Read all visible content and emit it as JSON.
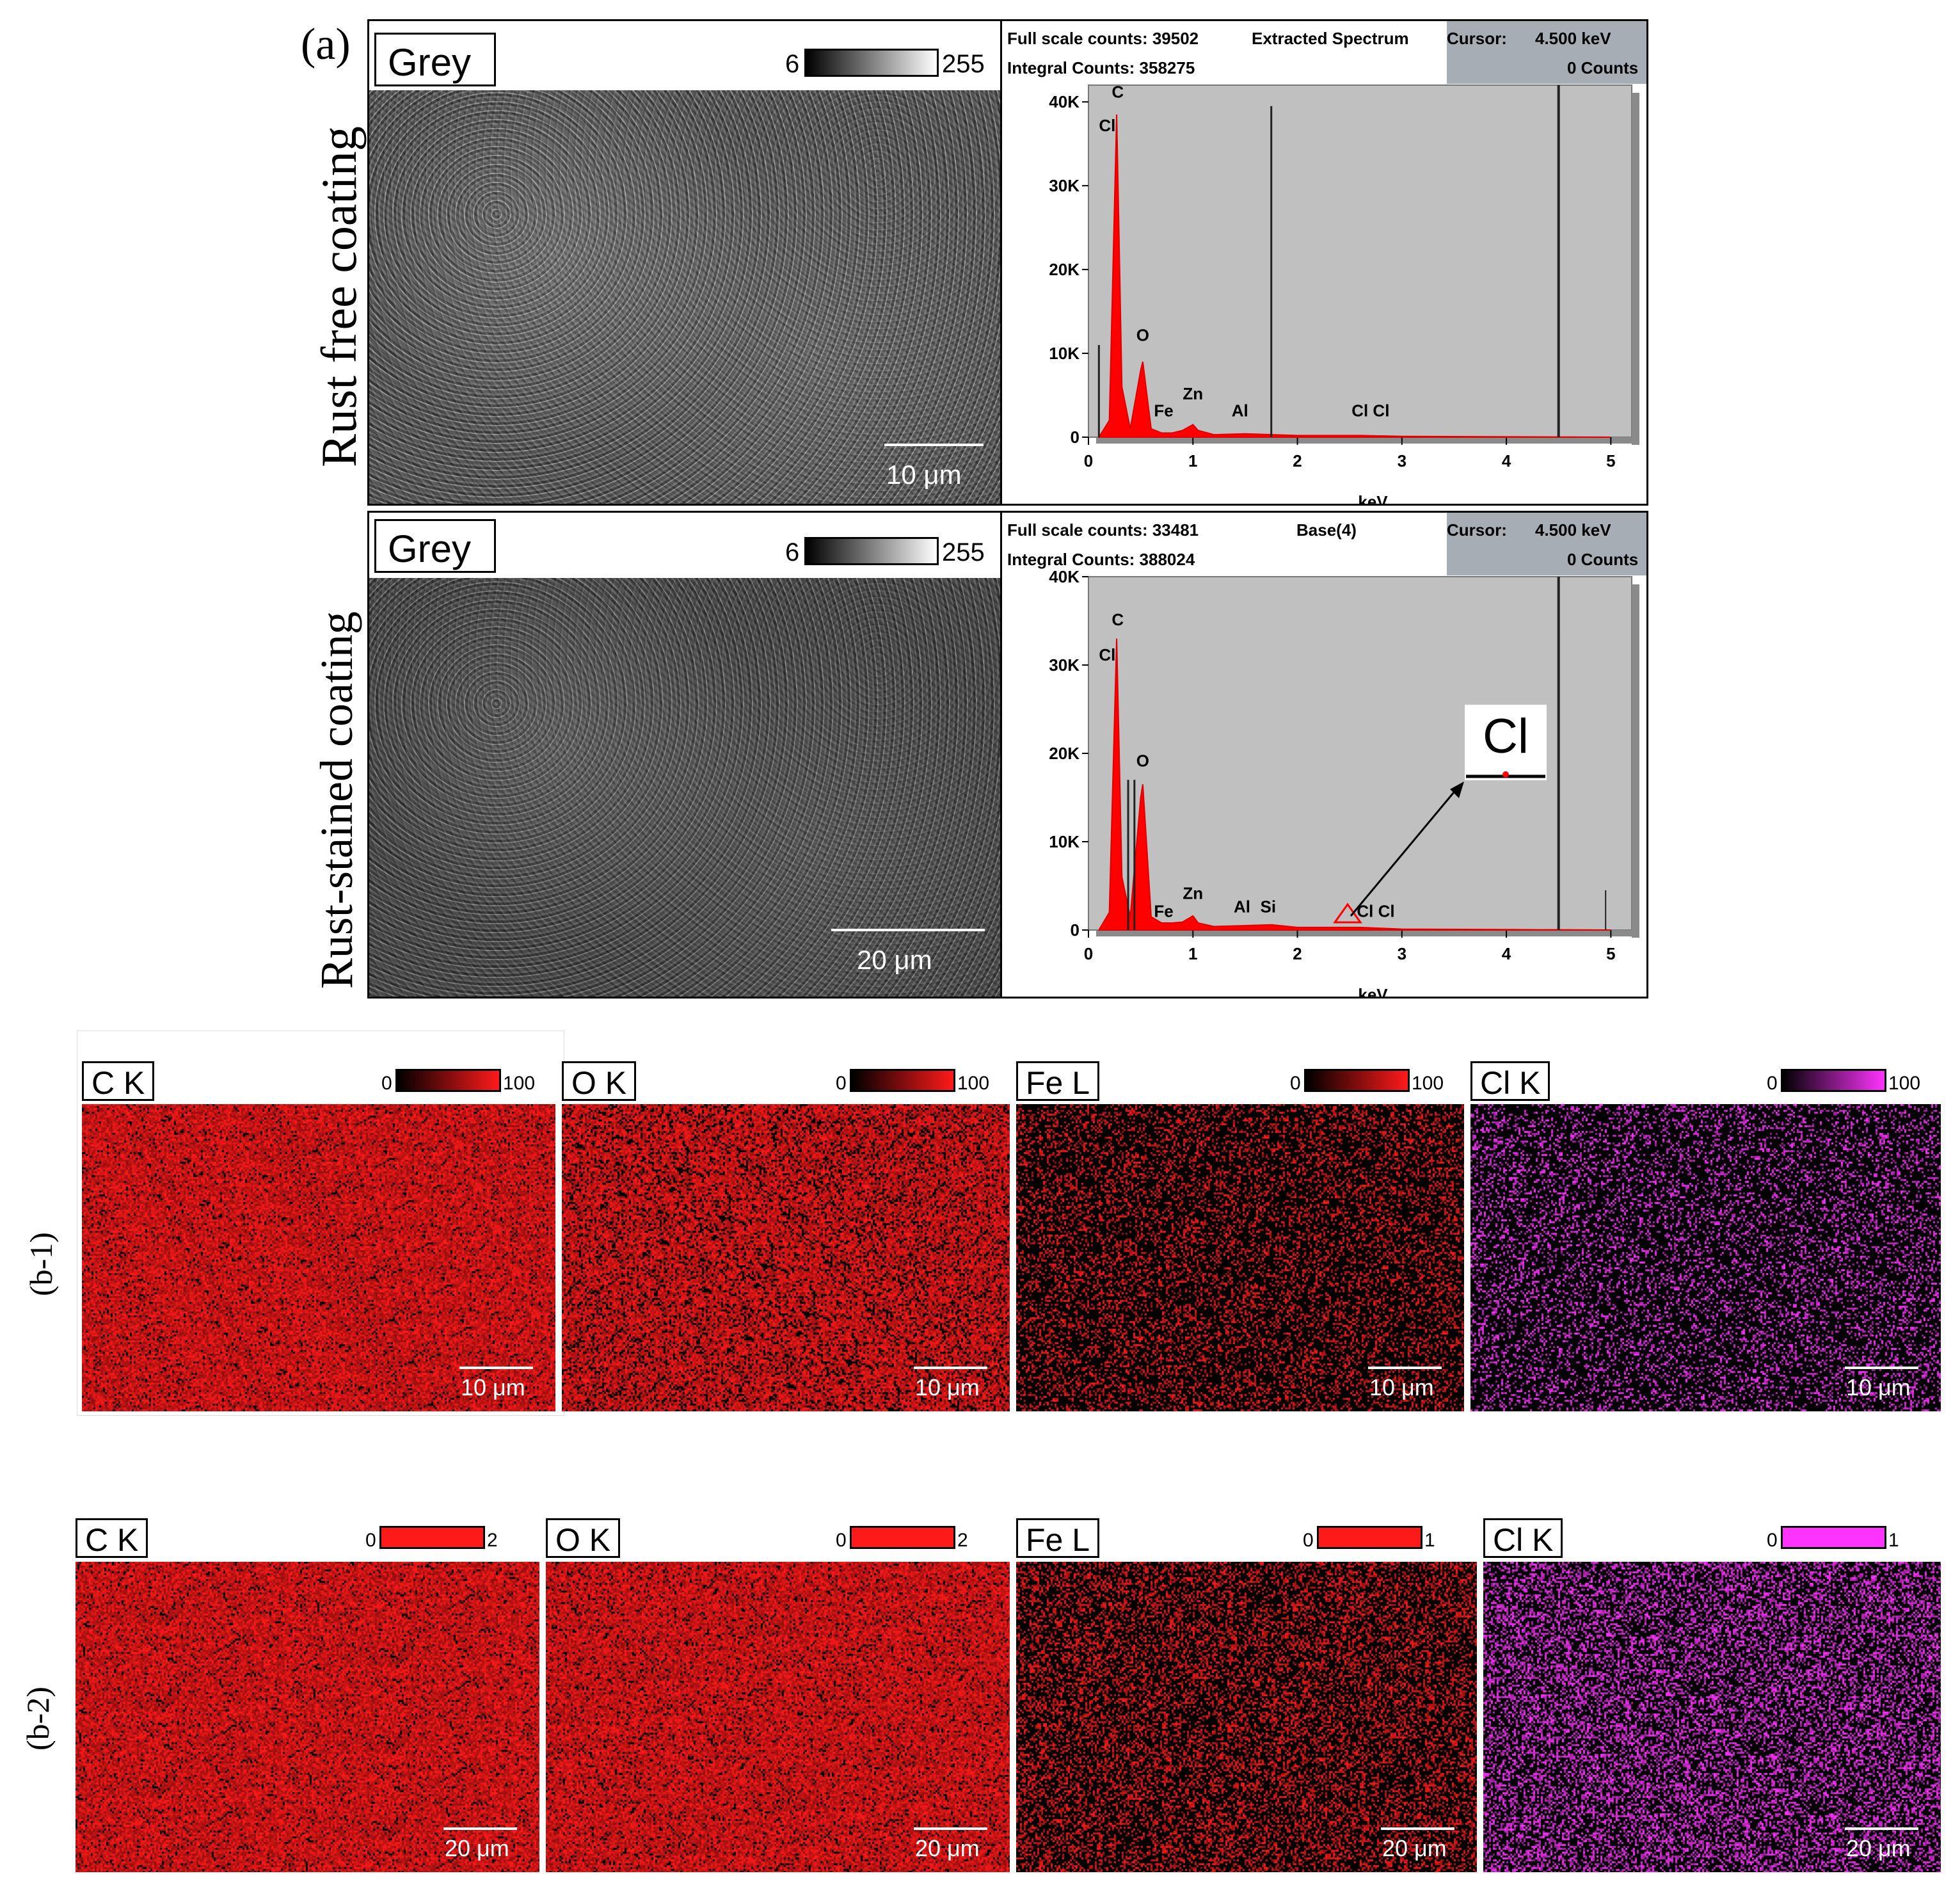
{
  "panel_a": {
    "label": "(a)",
    "rows": [
      {
        "row_label": "Rust free coating",
        "sem": {
          "label": "Grey",
          "ramp_min": "6",
          "ramp_max": "255",
          "scale": "10 μm"
        },
        "spectrum": {
          "full_scale": "Full scale counts: 39502",
          "integral": "Integral Counts: 358275",
          "name": "Extracted Spectrum",
          "cursor_label": "Cursor:",
          "cursor_value": "4.500 keV",
          "cursor_counts": "0 Counts",
          "xlabel": "keV",
          "xticks": [
            "0",
            "1",
            "2",
            "3",
            "4",
            "5"
          ],
          "yticks": [
            "0",
            "10K",
            "20K",
            "30K",
            "40K"
          ],
          "peak_labels": [
            "C",
            "Cl",
            "O",
            "Fe",
            "Zn",
            "Al",
            "Cl Cl"
          ]
        }
      },
      {
        "row_label": "Rust-stained coating",
        "sem": {
          "label": "Grey",
          "ramp_min": "6",
          "ramp_max": "255",
          "scale": "20 μm"
        },
        "spectrum": {
          "full_scale": "Full scale counts: 33481",
          "integral": "Integral Counts: 388024",
          "name": "Base(4)",
          "cursor_label": "Cursor:",
          "cursor_value": "4.500 keV",
          "cursor_counts": "0 Counts",
          "xlabel": "keV",
          "xticks": [
            "0",
            "1",
            "2",
            "3",
            "4",
            "5"
          ],
          "yticks": [
            "0",
            "10K",
            "20K",
            "30K",
            "40K"
          ],
          "peak_labels": [
            "C",
            "Cl",
            "O",
            "Fe",
            "Zn",
            "Al",
            "Si",
            "Cl Cl"
          ],
          "inset_label": "Cl"
        }
      }
    ]
  },
  "panel_b1": {
    "label": "(b-1)",
    "maps": [
      {
        "element": "C K",
        "min": "0",
        "max": "100",
        "scale": "10 μm",
        "color": "#ff1a1a"
      },
      {
        "element": "O K",
        "min": "0",
        "max": "100",
        "scale": "10 μm",
        "color": "#ff1a1a"
      },
      {
        "element": "Fe L",
        "min": "0",
        "max": "100",
        "scale": "10 μm",
        "color": "#ff1a1a"
      },
      {
        "element": "Cl K",
        "min": "0",
        "max": "100",
        "scale": "10 μm",
        "color": "#ff33ff"
      }
    ]
  },
  "panel_b2": {
    "label": "(b-2)",
    "maps": [
      {
        "element": "C K",
        "min": "0",
        "max": "2",
        "scale": "20 μm",
        "color": "#ff1a1a"
      },
      {
        "element": "O K",
        "min": "0",
        "max": "2",
        "scale": "20 μm",
        "color": "#ff1a1a"
      },
      {
        "element": "Fe L",
        "min": "0",
        "max": "1",
        "scale": "20 μm",
        "color": "#ff1a1a"
      },
      {
        "element": "Cl K",
        "min": "0",
        "max": "1",
        "scale": "20 μm",
        "color": "#ff33ff"
      }
    ]
  },
  "chart_data": [
    {
      "type": "line",
      "title": "Extracted Spectrum",
      "xlabel": "keV",
      "ylabel": "",
      "xlim": [
        0,
        5.2
      ],
      "ylim": [
        0,
        42000
      ],
      "series": [
        {
          "x": [
            0.1,
            0.2,
            0.27,
            0.32,
            0.4,
            0.5,
            0.52,
            0.6,
            0.7,
            0.8,
            0.9,
            1.0,
            1.05,
            1.2,
            1.5,
            2.0,
            2.6,
            3.0,
            4.0,
            5.0
          ],
          "values": [
            0,
            2000,
            38500,
            6000,
            1000,
            8000,
            9000,
            1000,
            500,
            500,
            800,
            1500,
            800,
            300,
            400,
            200,
            200,
            100,
            50,
            0
          ]
        }
      ]
    },
    {
      "type": "line",
      "title": "Base(4)",
      "xlabel": "keV",
      "ylabel": "",
      "xlim": [
        0,
        5.2
      ],
      "ylim": [
        0,
        40000
      ],
      "series": [
        {
          "x": [
            0.1,
            0.2,
            0.27,
            0.32,
            0.4,
            0.5,
            0.52,
            0.6,
            0.7,
            0.8,
            0.9,
            1.0,
            1.05,
            1.2,
            1.5,
            1.75,
            2.0,
            2.6,
            3.0,
            4.0,
            5.0
          ],
          "values": [
            0,
            2000,
            33000,
            6000,
            1500,
            15000,
            16500,
            1500,
            800,
            800,
            900,
            1600,
            800,
            400,
            500,
            600,
            300,
            300,
            100,
            50,
            0
          ]
        }
      ]
    }
  ]
}
